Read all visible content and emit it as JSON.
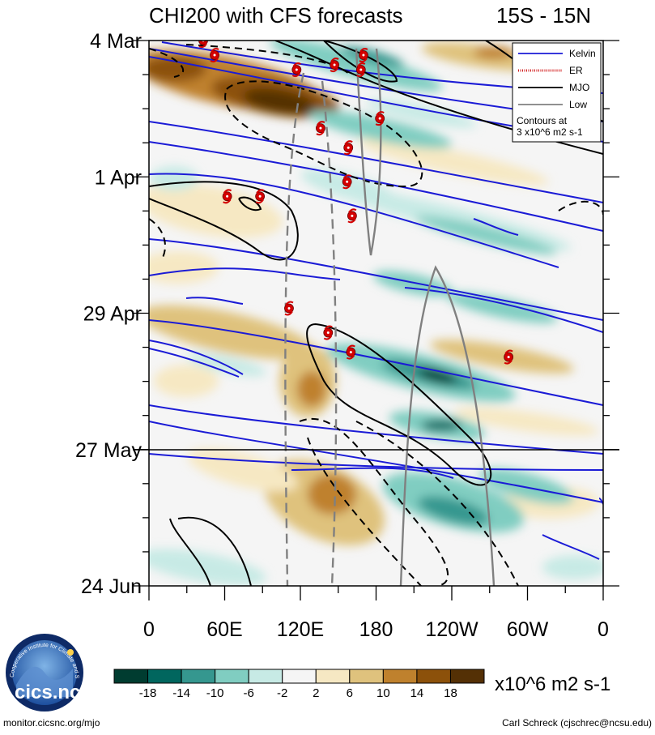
{
  "title": {
    "left": "CHI200 with CFS forecasts",
    "right": "15S - 15N"
  },
  "chart_data": {
    "type": "heatmap",
    "title": "CHI200 with CFS forecasts",
    "region": "15S - 15N",
    "x_ticks": [
      "0",
      "60E",
      "120E",
      "180",
      "120W",
      "60W",
      "0"
    ],
    "x_range": [
      0,
      360
    ],
    "y_ticks": [
      "4 Mar",
      "1 Apr",
      "29 Apr",
      "27 May",
      "24 Jun"
    ],
    "forecast_start": "27 May",
    "legend": [
      {
        "label": "Kelvin",
        "color": "#1b1bd6",
        "style": "solid"
      },
      {
        "label": "ER",
        "color": "#d21f1f",
        "style": "dotted"
      },
      {
        "label": "MJO",
        "color": "#000000",
        "style": "solid"
      },
      {
        "label": "Low",
        "color": "#808080",
        "style": "solid"
      }
    ],
    "contour_note": [
      "Contours at",
      "3 x10^6 m2 s-1"
    ],
    "colorbar": {
      "labels": [
        "-18",
        "-14",
        "-10",
        "-6",
        "-2",
        "2",
        "6",
        "10",
        "14",
        "18"
      ],
      "colors": [
        "#003c30",
        "#01665e",
        "#35978f",
        "#80cdc1",
        "#c7eae5",
        "#f5f5f5",
        "#f6e8c3",
        "#dfc27d",
        "#bf812d",
        "#8c510a",
        "#543005"
      ],
      "units": "x10^6 m2 s-1"
    },
    "storms": [
      {
        "lon": 43,
        "date": "4 Mar"
      },
      {
        "lon": 52,
        "date": "7 Mar"
      },
      {
        "lon": 117,
        "date": "10 Mar"
      },
      {
        "lon": 147,
        "date": "9 Mar"
      },
      {
        "lon": 170,
        "date": "7 Mar"
      },
      {
        "lon": 168,
        "date": "10 Mar"
      },
      {
        "lon": 183,
        "date": "20 Mar"
      },
      {
        "lon": 136,
        "date": "22 Mar"
      },
      {
        "lon": 158,
        "date": "26 Mar"
      },
      {
        "lon": 157,
        "date": "2 Apr"
      },
      {
        "lon": 62,
        "date": "5 Apr"
      },
      {
        "lon": 88,
        "date": "5 Apr"
      },
      {
        "lon": 161,
        "date": "9 Apr"
      },
      {
        "lon": 111,
        "date": "28 Apr"
      },
      {
        "lon": 142,
        "date": "3 May"
      },
      {
        "lon": 160,
        "date": "7 May"
      },
      {
        "lon": 285,
        "date": "8 May"
      }
    ]
  },
  "footer": {
    "left": "monitor.cicsnc.org/mjo",
    "right": "Carl Schreck (cjschrec@ncsu.edu)"
  },
  "logo": {
    "ring_text": "Cooperative Institute for Climate and Satellites",
    "text": "cics.nc"
  }
}
